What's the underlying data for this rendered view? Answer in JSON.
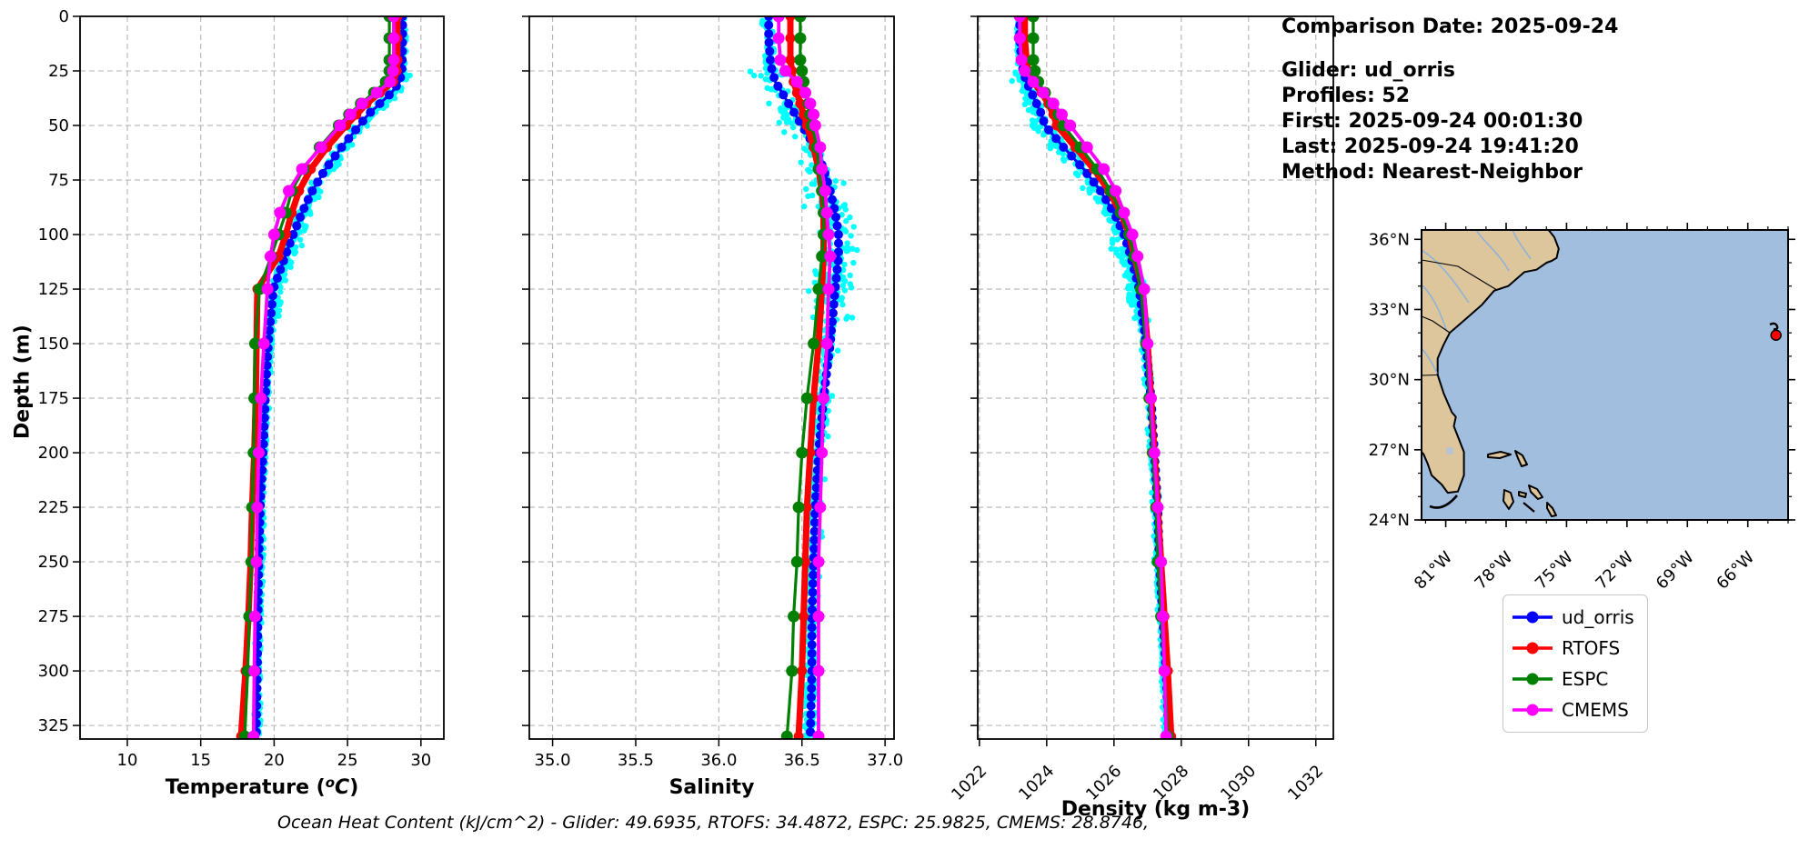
{
  "info": {
    "comparison_date": "Comparison Date: 2025-09-24",
    "glider": "Glider: ud_orris",
    "profiles": "Profiles: 52",
    "first": "First: 2025-09-24 00:01:30",
    "last": "Last: 2025-09-24 19:41:20",
    "method": "Method: Nearest-Neighbor"
  },
  "annotation": "Ocean Heat Content (kJ/cm^2) - Glider: 49.6935,  RTOFS: 34.4872,  ESPC: 25.9825,  CMEMS: 28.8746,",
  "legend": {
    "items": [
      {
        "label": "ud_orris",
        "color": "#0000ff"
      },
      {
        "label": "RTOFS",
        "color": "#ff0000"
      },
      {
        "label": "ESPC",
        "color": "#008000"
      },
      {
        "label": "CMEMS",
        "color": "#ff00ff"
      }
    ]
  },
  "colors": {
    "glider_line": "#0000ff",
    "rtofs_line": "#ff0000",
    "espc_line": "#008000",
    "cmems_line": "#ff00ff",
    "raw_scatter": "#00ffff",
    "grid": "#b4b4b4",
    "frame": "#000000"
  },
  "map": {
    "extent": {
      "lon_min": -82.2,
      "lon_max": -64.0,
      "lat_min": 24.0,
      "lat_max": 36.4
    },
    "lat_tick_values": [
      36,
      33,
      30,
      27,
      24
    ],
    "lat_tick_labels": [
      "36°N",
      "33°N",
      "30°N",
      "27°N",
      "24°N"
    ],
    "lon_tick_values": [
      -81,
      -78,
      -75,
      -72,
      -69,
      -66
    ],
    "lon_tick_labels": [
      "81°W",
      "78°W",
      "75°W",
      "72°W",
      "69°W",
      "66°W"
    ],
    "glider_marker": {
      "lat": 31.9,
      "lon": -64.6,
      "color": "#ff0000"
    },
    "land_color": "#ddc59c",
    "ocean_color": "#a2bedf",
    "river_color": "#8ab2dc",
    "lake_color": "#b9c4cc"
  },
  "chart_data": [
    {
      "type": "line",
      "name": "temperature",
      "xlabel": "Temperature (°C)",
      "ylabel": "Depth (m)",
      "xlim": [
        6.78,
        31.56
      ],
      "xticks": [
        10,
        15,
        20,
        25,
        30
      ],
      "xtick_labels": [
        "10",
        "15",
        "20",
        "25",
        "30"
      ],
      "rotate_xticklabels": false,
      "ylim": [
        0,
        331.2
      ],
      "yticks": [
        0,
        25,
        50,
        75,
        100,
        125,
        150,
        175,
        200,
        225,
        250,
        275,
        300,
        325
      ],
      "show_ytick_labels": true,
      "depths": [
        0,
        10,
        20,
        25,
        30,
        35,
        40,
        45,
        50,
        60,
        70,
        80,
        90,
        100,
        110,
        125,
        150,
        175,
        200,
        225,
        250,
        275,
        300,
        330
      ],
      "series": [
        {
          "name": "ud_orris",
          "color": "#0000ff",
          "line_width": 3,
          "marker_radius": 5,
          "marker_step": 4,
          "values": [
            28.75,
            28.75,
            28.72,
            28.7,
            28.55,
            28.0,
            27.2,
            26.4,
            25.8,
            24.6,
            23.5,
            22.6,
            21.9,
            21.3,
            20.75,
            19.95,
            19.6,
            19.4,
            19.25,
            19.05,
            18.95,
            18.9,
            18.85,
            18.78
          ]
        },
        {
          "name": "RTOFS",
          "color": "#ff0000",
          "line_width": 7,
          "marker_radius": 5.5,
          "marker_step": null,
          "values": [
            28.4,
            28.4,
            28.4,
            28.35,
            28.1,
            27.2,
            26.3,
            25.6,
            24.9,
            23.6,
            22.5,
            21.7,
            21.2,
            20.8,
            20.3,
            18.86,
            18.8,
            18.75,
            18.65,
            18.5,
            18.4,
            18.25,
            18.05,
            17.75
          ]
        },
        {
          "name": "ESPC",
          "color": "#008000",
          "line_width": 3.2,
          "marker_radius": 6.5,
          "marker_step": null,
          "values": [
            27.85,
            27.85,
            27.85,
            27.85,
            27.6,
            26.8,
            25.9,
            25.1,
            24.4,
            23.1,
            22.0,
            21.2,
            20.8,
            20.3,
            19.8,
            19.0,
            18.7,
            18.65,
            18.6,
            18.5,
            18.45,
            18.3,
            18.2,
            18.0
          ]
        },
        {
          "name": "CMEMS",
          "color": "#ff00ff",
          "line_width": 3.8,
          "marker_radius": 6.5,
          "marker_step": null,
          "values": [
            28.15,
            28.15,
            28.15,
            28.1,
            27.9,
            27.0,
            26.0,
            25.2,
            24.5,
            23.2,
            21.9,
            21.0,
            20.4,
            20.0,
            19.75,
            19.55,
            19.3,
            19.1,
            18.95,
            18.85,
            18.8,
            18.7,
            18.65,
            18.6
          ]
        }
      ],
      "scatter": {
        "name": "glider-raw-points",
        "color": "#00ffff",
        "radius": 3.2,
        "count": 720,
        "offset": 0.2,
        "spread": 0.55
      }
    },
    {
      "type": "line",
      "name": "salinity",
      "xlabel": "Salinity",
      "ylabel": "Depth (m)",
      "xlim": [
        34.86,
        37.054
      ],
      "xticks": [
        35.0,
        35.5,
        36.0,
        36.5,
        37.0
      ],
      "xtick_labels": [
        "35.0",
        "35.5",
        "36.0",
        "36.5",
        "37.0"
      ],
      "rotate_xticklabels": false,
      "ylim": [
        0,
        331.2
      ],
      "yticks": [
        0,
        25,
        50,
        75,
        100,
        125,
        150,
        175,
        200,
        225,
        250,
        275,
        300,
        325
      ],
      "show_ytick_labels": false,
      "depths": [
        0,
        10,
        20,
        25,
        30,
        35,
        40,
        45,
        50,
        60,
        70,
        80,
        90,
        100,
        110,
        125,
        150,
        175,
        200,
        225,
        250,
        275,
        300,
        330
      ],
      "series": [
        {
          "name": "ud_orris",
          "color": "#0000ff",
          "line_width": 3,
          "marker_radius": 5,
          "marker_step": 4,
          "values": [
            36.3,
            36.3,
            36.31,
            36.32,
            36.34,
            36.38,
            36.42,
            36.46,
            36.5,
            36.58,
            36.63,
            36.67,
            36.7,
            36.72,
            36.72,
            36.7,
            36.67,
            36.63,
            36.6,
            36.58,
            36.57,
            36.56,
            36.56,
            36.55
          ]
        },
        {
          "name": "RTOFS",
          "color": "#ff0000",
          "line_width": 7,
          "marker_radius": 5.5,
          "marker_step": null,
          "values": [
            36.43,
            36.43,
            36.43,
            36.44,
            36.45,
            36.47,
            36.49,
            36.51,
            36.53,
            36.57,
            36.6,
            36.62,
            36.63,
            36.63,
            36.63,
            36.62,
            36.6,
            36.57,
            36.55,
            36.53,
            36.52,
            36.51,
            36.5,
            36.48
          ]
        },
        {
          "name": "ESPC",
          "color": "#008000",
          "line_width": 3.2,
          "marker_radius": 6.5,
          "marker_step": null,
          "values": [
            36.49,
            36.49,
            36.49,
            36.5,
            36.51,
            36.52,
            36.54,
            36.55,
            36.56,
            36.59,
            36.6,
            36.62,
            36.63,
            36.63,
            36.62,
            36.6,
            36.57,
            36.53,
            36.5,
            36.48,
            36.47,
            36.45,
            36.44,
            36.41
          ]
        },
        {
          "name": "CMEMS",
          "color": "#ff00ff",
          "line_width": 3.8,
          "marker_radius": 6.5,
          "marker_step": null,
          "values": [
            36.36,
            36.36,
            36.37,
            36.4,
            36.47,
            36.52,
            36.55,
            36.57,
            36.58,
            36.61,
            36.62,
            36.64,
            36.65,
            36.66,
            36.67,
            36.66,
            36.65,
            36.63,
            36.62,
            36.61,
            36.6,
            36.6,
            36.6,
            36.6
          ]
        }
      ],
      "scatter": {
        "name": "glider-raw-points",
        "color": "#00ffff",
        "radius": 3.2,
        "count": 720,
        "offset": -0.02,
        "spread": 0.12
      }
    },
    {
      "type": "line",
      "name": "density",
      "xlabel": "Density (kg m-3)",
      "ylabel": "Depth (m)",
      "xlim": [
        1021.95,
        1032.52
      ],
      "xticks": [
        1022,
        1024,
        1026,
        1028,
        1030,
        1032
      ],
      "xtick_labels": [
        "1022",
        "1024",
        "1026",
        "1028",
        "1030",
        "1032"
      ],
      "rotate_xticklabels": true,
      "ylim": [
        0,
        331.2
      ],
      "yticks": [
        0,
        25,
        50,
        75,
        100,
        125,
        150,
        175,
        200,
        225,
        250,
        275,
        300,
        325
      ],
      "show_ytick_labels": false,
      "depths": [
        0,
        10,
        20,
        25,
        30,
        35,
        40,
        45,
        50,
        60,
        70,
        80,
        90,
        100,
        110,
        125,
        150,
        175,
        200,
        225,
        250,
        275,
        300,
        330
      ],
      "series": [
        {
          "name": "ud_orris",
          "color": "#0000ff",
          "line_width": 3,
          "marker_radius": 5,
          "marker_step": 4,
          "values": [
            1023.2,
            1023.2,
            1023.25,
            1023.3,
            1023.4,
            1023.55,
            1023.7,
            1023.85,
            1023.95,
            1024.5,
            1025.1,
            1025.6,
            1026.0,
            1026.3,
            1026.5,
            1026.75,
            1026.95,
            1027.1,
            1027.2,
            1027.3,
            1027.35,
            1027.45,
            1027.55,
            1027.63
          ]
        },
        {
          "name": "RTOFS",
          "color": "#ff0000",
          "line_width": 7,
          "marker_radius": 5.5,
          "marker_step": null,
          "values": [
            1023.35,
            1023.35,
            1023.4,
            1023.45,
            1023.6,
            1023.85,
            1024.05,
            1024.2,
            1024.3,
            1024.85,
            1025.4,
            1025.85,
            1026.2,
            1026.45,
            1026.6,
            1026.85,
            1027.0,
            1027.1,
            1027.2,
            1027.3,
            1027.4,
            1027.5,
            1027.6,
            1027.7
          ]
        },
        {
          "name": "ESPC",
          "color": "#008000",
          "line_width": 3.2,
          "marker_radius": 6.5,
          "marker_step": null,
          "values": [
            1023.6,
            1023.6,
            1023.6,
            1023.65,
            1023.75,
            1023.95,
            1024.15,
            1024.35,
            1024.5,
            1025.0,
            1025.5,
            1025.9,
            1026.2,
            1026.45,
            1026.6,
            1026.8,
            1026.95,
            1027.05,
            1027.15,
            1027.25,
            1027.3,
            1027.4,
            1027.5,
            1027.6
          ]
        },
        {
          "name": "CMEMS",
          "color": "#ff00ff",
          "line_width": 3.8,
          "marker_radius": 6.5,
          "marker_step": null,
          "values": [
            1023.2,
            1023.2,
            1023.25,
            1023.35,
            1023.6,
            1023.9,
            1024.2,
            1024.45,
            1024.7,
            1025.2,
            1025.7,
            1026.05,
            1026.3,
            1026.55,
            1026.7,
            1026.9,
            1027.0,
            1027.1,
            1027.2,
            1027.3,
            1027.4,
            1027.45,
            1027.5,
            1027.55
          ]
        }
      ],
      "scatter": {
        "name": "glider-raw-points",
        "color": "#00ffff",
        "radius": 3.2,
        "count": 720,
        "offset": -0.12,
        "spread": 0.3
      }
    }
  ]
}
